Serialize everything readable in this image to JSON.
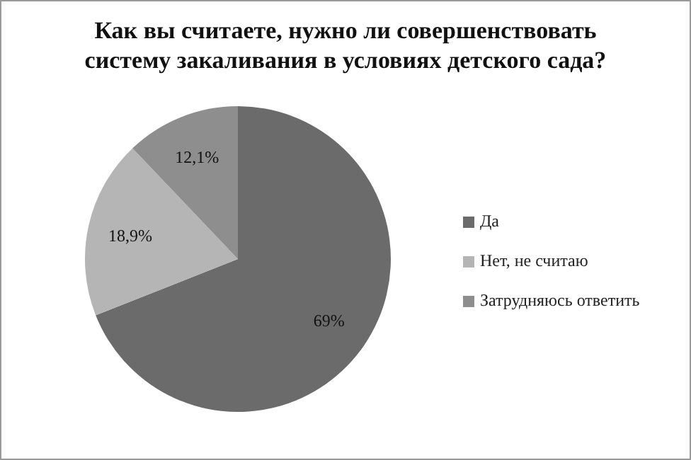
{
  "chart_data": {
    "type": "pie",
    "title": "Как вы считаете, нужно ли совершенствовать систему закаливания в условиях детского сада?",
    "categories": [
      "Да",
      "Нет, не считаю",
      "Затрудняюсь ответить"
    ],
    "values": [
      69,
      18.9,
      12.1
    ],
    "value_labels": [
      "69%",
      "18,9%",
      "12,1%"
    ],
    "colors": [
      "#6b6b6b",
      "#b5b5b5",
      "#8e8e8e"
    ],
    "legend": "right"
  }
}
